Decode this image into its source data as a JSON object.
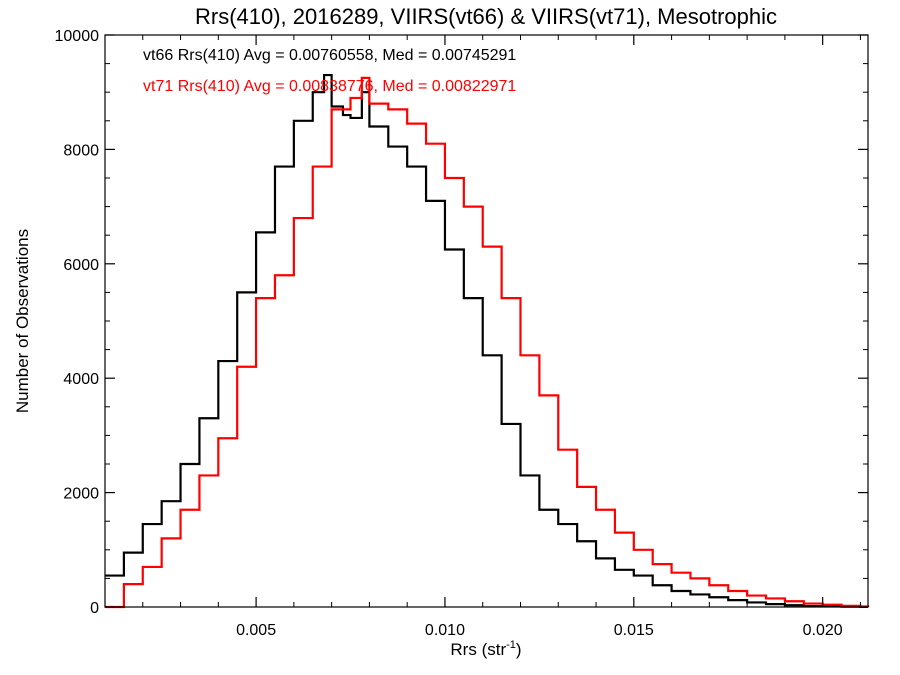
{
  "chart_data": {
    "type": "line",
    "title": "Rrs(410), 2016289, VIIRS(vt66) & VIIRS(vt71), Mesotrophic",
    "xlabel_main": "Rrs (str",
    "xlabel_sup": "-1",
    "xlabel_close": ")",
    "ylabel": "Number of Observations",
    "xlim": [
      0.001,
      0.0212
    ],
    "ylim": [
      0,
      10000
    ],
    "x_ticks": [
      0.005,
      0.01,
      0.015,
      0.02
    ],
    "x_tick_labels": [
      "0.005",
      "0.010",
      "0.015",
      "0.020"
    ],
    "y_ticks": [
      0,
      2000,
      4000,
      6000,
      8000,
      10000
    ],
    "y_tick_labels": [
      "0",
      "2000",
      "4000",
      "6000",
      "8000",
      "10000"
    ],
    "step": true,
    "grid": false,
    "series": [
      {
        "name": "vt66 Rrs(410) Avg = 0.00760558, Med = 0.00745291",
        "color": "#000000",
        "x": [
          0.001,
          0.0015,
          0.002,
          0.0025,
          0.003,
          0.0035,
          0.004,
          0.0045,
          0.005,
          0.0055,
          0.006,
          0.0065,
          0.0068,
          0.007,
          0.0073,
          0.0075,
          0.0078,
          0.008,
          0.0085,
          0.009,
          0.0095,
          0.01,
          0.0105,
          0.011,
          0.0115,
          0.012,
          0.0125,
          0.013,
          0.0135,
          0.014,
          0.0145,
          0.015,
          0.0155,
          0.016,
          0.0165,
          0.017,
          0.0175,
          0.018,
          0.0185,
          0.019,
          0.0195,
          0.02,
          0.0205,
          0.021,
          0.0212
        ],
        "values": [
          550,
          950,
          1450,
          1850,
          2500,
          3300,
          4300,
          5500,
          6550,
          7700,
          8500,
          9000,
          9300,
          8750,
          8600,
          8550,
          9000,
          8400,
          8050,
          7700,
          7100,
          6250,
          5400,
          4400,
          3200,
          2300,
          1700,
          1450,
          1150,
          850,
          650,
          550,
          380,
          280,
          220,
          170,
          120,
          80,
          50,
          30,
          15,
          10,
          5,
          2,
          0
        ]
      },
      {
        "name": "vt71 Rrs(410) Avg = 0.00838776, Med = 0.00822971",
        "color": "#ff0000",
        "x": [
          0.001,
          0.0015,
          0.002,
          0.0025,
          0.003,
          0.0035,
          0.004,
          0.0045,
          0.005,
          0.0055,
          0.006,
          0.0065,
          0.007,
          0.0075,
          0.0078,
          0.008,
          0.0085,
          0.009,
          0.0095,
          0.01,
          0.0105,
          0.011,
          0.0115,
          0.012,
          0.0125,
          0.013,
          0.0135,
          0.014,
          0.0145,
          0.015,
          0.0155,
          0.016,
          0.0165,
          0.017,
          0.0175,
          0.018,
          0.0185,
          0.019,
          0.0195,
          0.02,
          0.0205,
          0.021,
          0.0212
        ],
        "values": [
          0,
          400,
          700,
          1200,
          1700,
          2300,
          2950,
          4200,
          5400,
          5800,
          6800,
          7700,
          8700,
          8900,
          9250,
          8800,
          8700,
          8450,
          8100,
          7500,
          7000,
          6300,
          5400,
          4400,
          3700,
          2750,
          2100,
          1700,
          1300,
          1000,
          750,
          600,
          500,
          380,
          280,
          200,
          150,
          100,
          60,
          40,
          20,
          10,
          0
        ]
      }
    ]
  }
}
